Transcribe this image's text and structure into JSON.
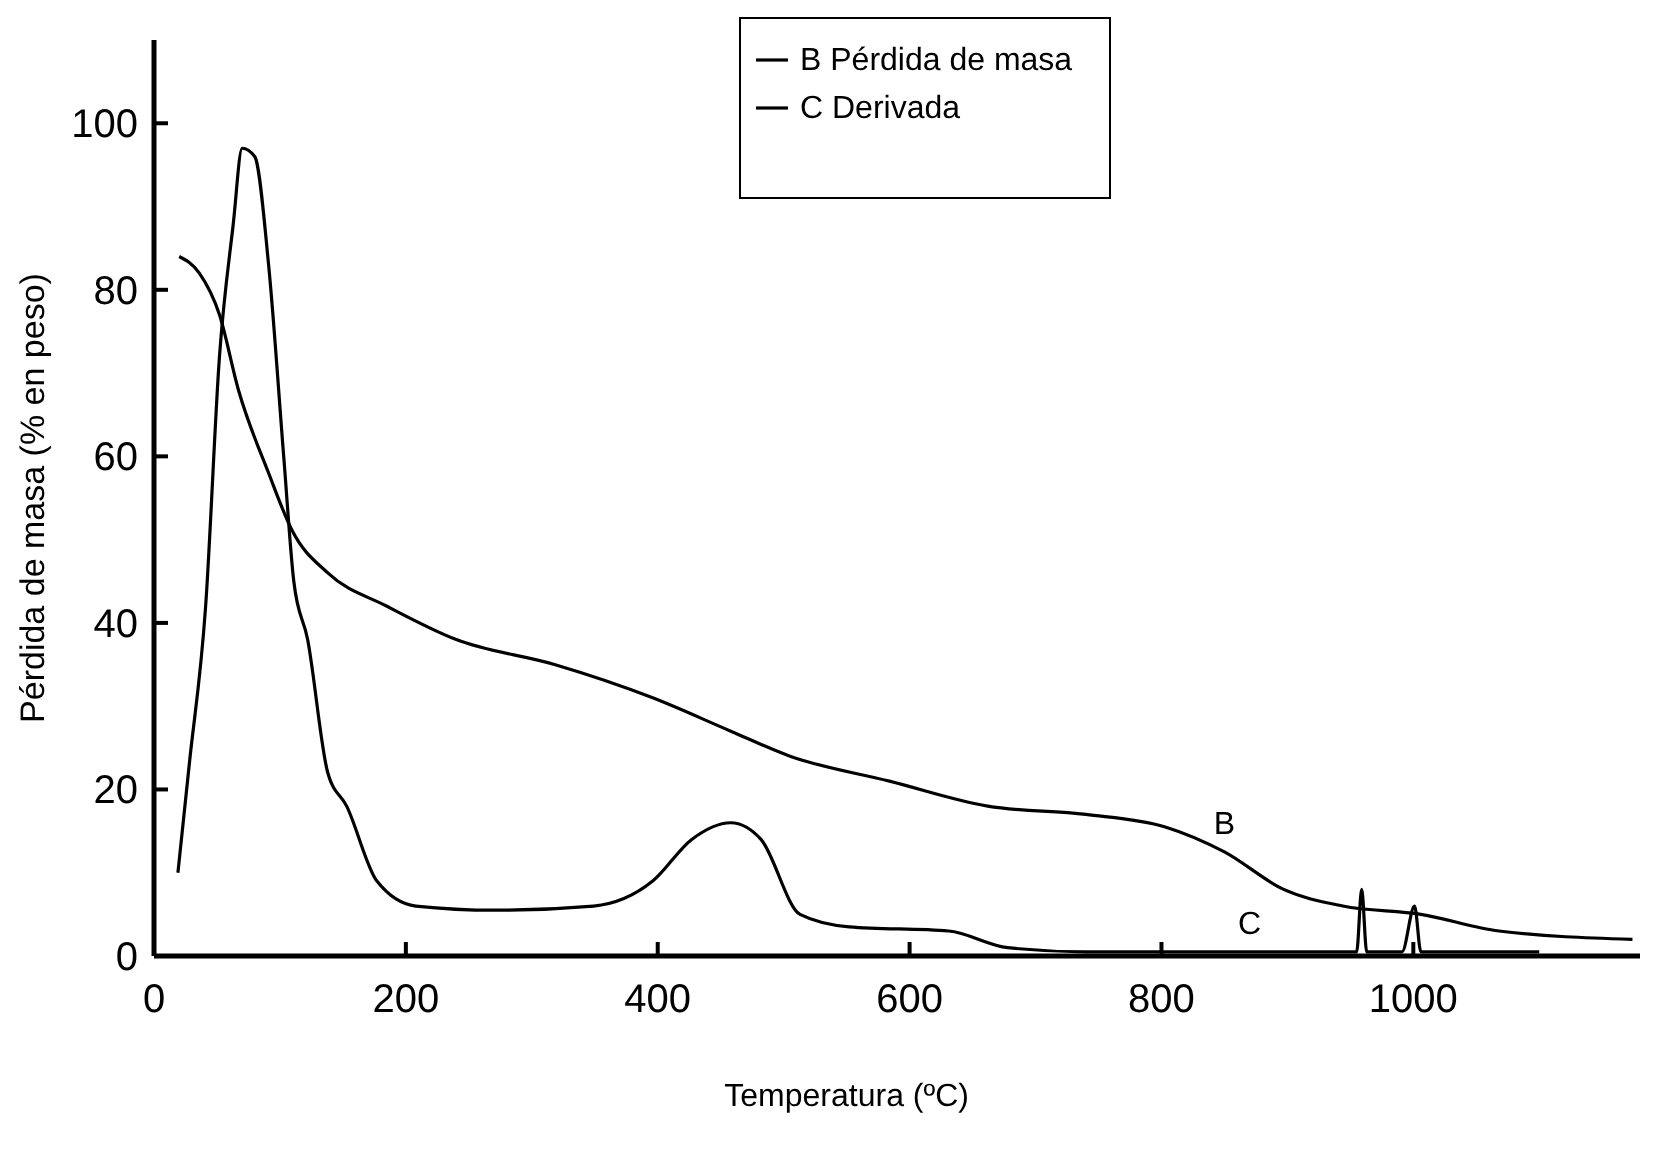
{
  "chart_data": {
    "type": "line",
    "xlabel": "Temperatura (ºC)",
    "ylabel": "Pérdida de masa (% en peso)",
    "xlim": [
      0,
      1180
    ],
    "ylim": [
      0,
      110
    ],
    "xticks": [
      0,
      200,
      400,
      600,
      800,
      1000
    ],
    "yticks": [
      0,
      20,
      40,
      60,
      80,
      100
    ],
    "grid": false,
    "legend": "top",
    "marker": "none",
    "line_style": "solid",
    "series": [
      {
        "name": "B Pérdida de masa",
        "color": "#000000",
        "x": [
          20,
          36,
          52,
          67,
          91,
          110,
          138,
          185,
          240,
          318,
          396,
          458,
          505,
          584,
          662,
          740,
          803,
          850,
          897,
          944,
          1006,
          1068,
          1174
        ],
        "values": [
          84,
          82,
          77,
          68,
          58,
          51,
          46,
          42,
          38,
          35,
          31,
          27,
          24,
          21,
          18,
          17,
          15.5,
          12.5,
          8,
          6,
          5,
          3,
          2
        ]
      },
      {
        "name": "C Derivada",
        "color": "#000000",
        "x": [
          19,
          28,
          41,
          52,
          63,
          70,
          80,
          91,
          103,
          111,
          122,
          138,
          153,
          177,
          208,
          271,
          349,
          396,
          427,
          458,
          482,
          513,
          552,
          631,
          678,
          740,
          955,
          959,
          963,
          991,
          1001,
          1006,
          1100
        ],
        "values": [
          10,
          23,
          42,
          72,
          88,
          97,
          96,
          83,
          60,
          45,
          38,
          22,
          18,
          9,
          6,
          5.5,
          6,
          9,
          14,
          16,
          14,
          5,
          3.5,
          3,
          1,
          0.5,
          0.5,
          8,
          0.5,
          0.5,
          6,
          0.5,
          0.5
        ]
      }
    ],
    "annotations": [
      {
        "text": "B",
        "x": 850,
        "y": 12.5
      },
      {
        "text": "C",
        "x": 870,
        "y": 0.5
      }
    ]
  }
}
